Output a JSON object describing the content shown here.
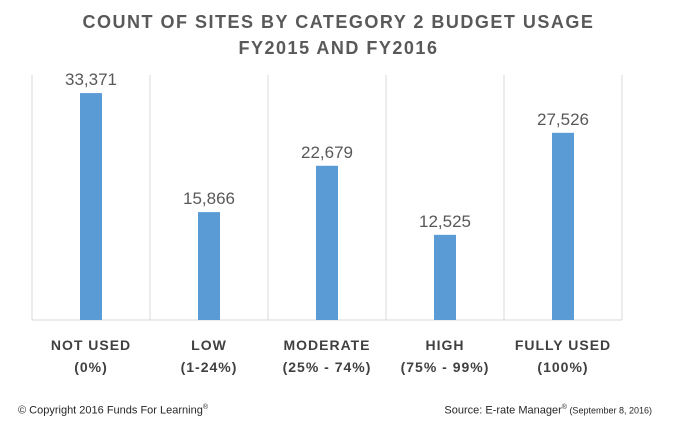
{
  "chart_data": {
    "type": "bar",
    "title_line1": "COUNT OF SITES BY CATEGORY 2 BUDGET USAGE",
    "title_line2": "FY2015 AND FY2016",
    "categories": [
      {
        "line1": "NOT USED",
        "line2": "(0%)"
      },
      {
        "line1": "LOW",
        "line2": "(1-24%)"
      },
      {
        "line1": "MODERATE",
        "line2": "(25% - 74%)"
      },
      {
        "line1": "HIGH",
        "line2": "(75% - 99%)"
      },
      {
        "line1": "FULLY USED",
        "line2": "(100%)"
      }
    ],
    "values": [
      33371,
      15866,
      22679,
      12525,
      27526
    ],
    "value_labels": [
      "33,371",
      "15,866",
      "22,679",
      "12,525",
      "27,526"
    ],
    "ylim": [
      0,
      40000
    ],
    "grid": false,
    "colors": {
      "bar": "#5b9bd5",
      "divider": "#d9d9d9",
      "baseline": "#d9d9d9"
    }
  },
  "footer": {
    "copyright": "© Copyright 2016 Funds For Learning",
    "copyright_mark": "®",
    "source_main": "Source: E-rate Manager",
    "source_mark": "®",
    "source_date": " (September  8, 2016)"
  }
}
